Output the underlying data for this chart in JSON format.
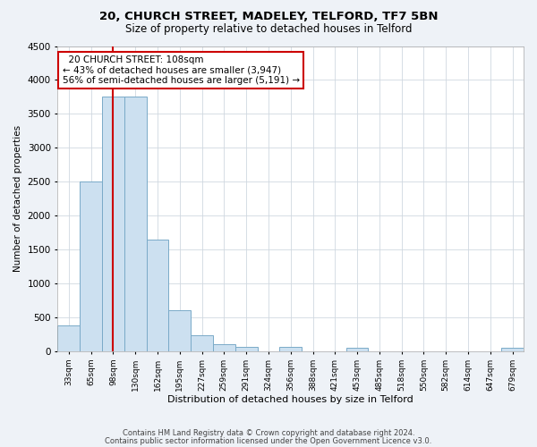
{
  "title1": "20, CHURCH STREET, MADELEY, TELFORD, TF7 5BN",
  "title2": "Size of property relative to detached houses in Telford",
  "xlabel": "Distribution of detached houses by size in Telford",
  "ylabel": "Number of detached properties",
  "annotation_line1": "  20 CHURCH STREET: 108sqm  ",
  "annotation_line2": "← 43% of detached houses are smaller (3,947)",
  "annotation_line3": "56% of semi-detached houses are larger (5,191) →",
  "footer1": "Contains HM Land Registry data © Crown copyright and database right 2024.",
  "footer2": "Contains public sector information licensed under the Open Government Licence v3.0.",
  "bar_labels": [
    "33sqm",
    "65sqm",
    "98sqm",
    "130sqm",
    "162sqm",
    "195sqm",
    "227sqm",
    "259sqm",
    "291sqm",
    "324sqm",
    "356sqm",
    "388sqm",
    "421sqm",
    "453sqm",
    "485sqm",
    "518sqm",
    "550sqm",
    "582sqm",
    "614sqm",
    "647sqm",
    "679sqm"
  ],
  "bar_values": [
    380,
    2500,
    3750,
    3750,
    1640,
    600,
    240,
    100,
    60,
    0,
    60,
    0,
    0,
    50,
    0,
    0,
    0,
    0,
    0,
    0,
    50
  ],
  "bar_color": "#cce0f0",
  "bar_edge_color": "#7aaac8",
  "vline_x": 2.0,
  "vline_color": "#cc0000",
  "ylim": [
    0,
    4500
  ],
  "yticks": [
    0,
    500,
    1000,
    1500,
    2000,
    2500,
    3000,
    3500,
    4000,
    4500
  ],
  "bg_color": "#eef2f7",
  "plot_bg_color": "#ffffff",
  "annotation_box_color": "#ffffff",
  "annotation_box_edge": "#cc0000",
  "grid_color": "#d0d8e0"
}
